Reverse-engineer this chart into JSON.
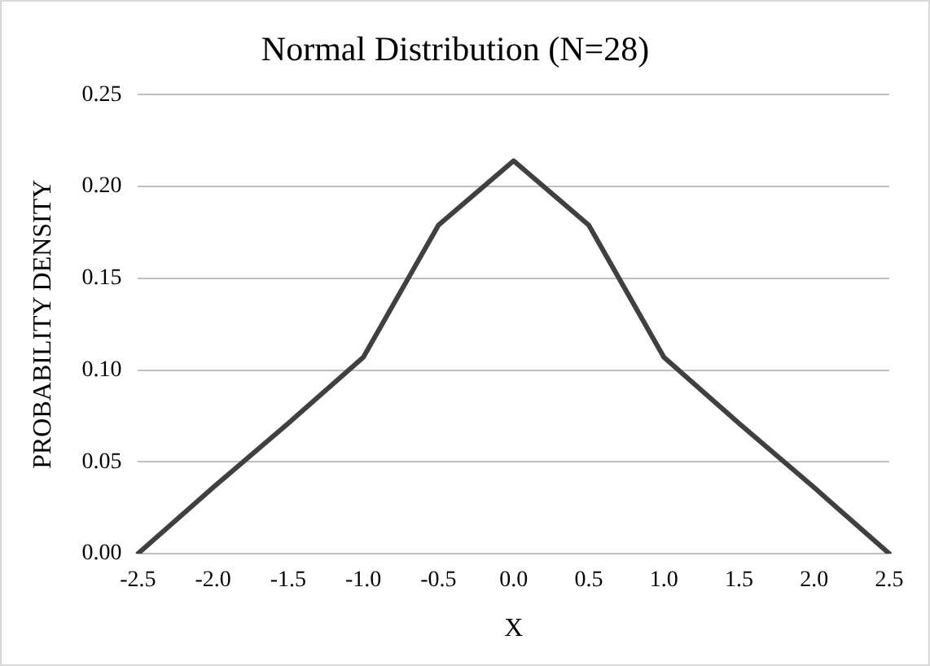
{
  "chart_data": {
    "type": "line",
    "title": "Normal Distribution (N=28)",
    "xlabel": "X",
    "ylabel": "PROBABILITY DENSITY",
    "categories": [
      "-2.5",
      "-2.0",
      "-1.5",
      "-1.0",
      "-0.5",
      "0.0",
      "0.5",
      "1.0",
      "1.5",
      "2.0",
      "2.5"
    ],
    "series": [
      {
        "color": "#404040",
        "values": [
          0,
          0.036,
          0.071,
          0.107,
          0.179,
          0.214,
          0.179,
          0.107,
          0.071,
          0.036,
          0
        ]
      }
    ],
    "ylim": [
      0,
      0.25
    ],
    "yticks": [
      {
        "value": 0,
        "label": "0.00"
      },
      {
        "value": 0.05,
        "label": "0.05"
      },
      {
        "value": 0.1,
        "label": "0.10"
      },
      {
        "value": 0.15,
        "label": "0.15"
      },
      {
        "value": 0.2,
        "label": "0.20"
      },
      {
        "value": 0.25,
        "label": "0.25"
      }
    ],
    "grid": "y",
    "marker": "none",
    "line_style": "solid",
    "legend": false
  }
}
